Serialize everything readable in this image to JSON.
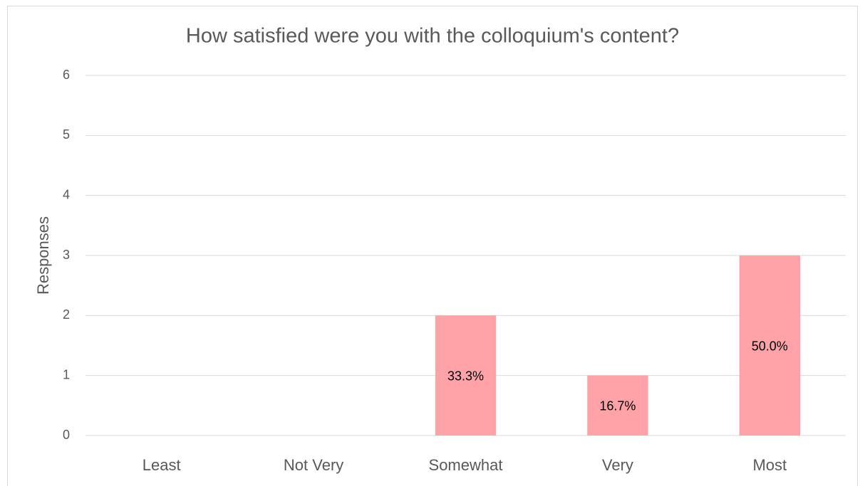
{
  "chart_data": {
    "type": "bar",
    "title": "How satisfied were you with the colloquium's content?",
    "y_label": "Responses",
    "categories": [
      "Least",
      "Not Very",
      "Somewhat",
      "Very",
      "Most"
    ],
    "values": [
      0,
      0,
      2,
      1,
      3
    ],
    "share_labels": [
      null,
      null,
      "33.3%",
      "16.7%",
      "50.0%"
    ],
    "color": "#ffa3a8",
    "ylim": [
      0,
      6
    ],
    "yticks": [
      0,
      1,
      2,
      3,
      4,
      5,
      6
    ],
    "grid": true
  }
}
